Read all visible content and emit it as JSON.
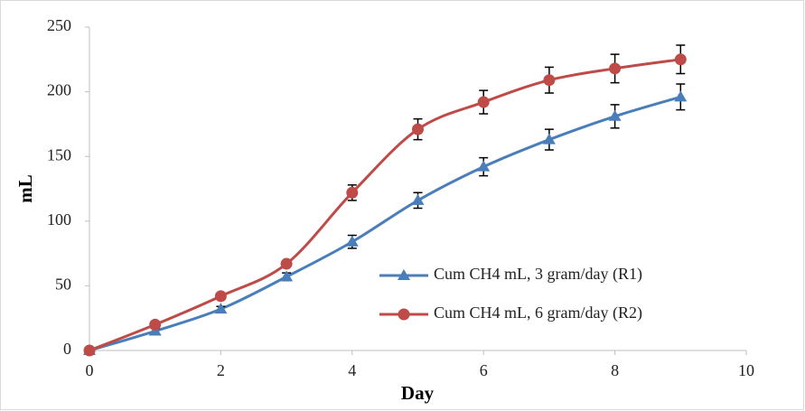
{
  "chart_data": {
    "type": "line",
    "x_label": "Day",
    "y_label": "mL",
    "x": [
      0,
      1,
      2,
      3,
      4,
      5,
      6,
      7,
      8,
      9
    ],
    "series": [
      {
        "name": "Cum CH4 mL, 3 gram/day (R1)",
        "color": "#4a7ebb",
        "marker": "triangle",
        "values": [
          0,
          15,
          32,
          57,
          84,
          116,
          142,
          163,
          181,
          196
        ],
        "errors": [
          1,
          2,
          2,
          3,
          5,
          6,
          7,
          8,
          9,
          10
        ]
      },
      {
        "name": "Cum CH4 mL, 6 gram/day (R2)",
        "color": "#be4b48",
        "marker": "circle",
        "values": [
          0,
          20,
          42,
          67,
          122,
          171,
          192,
          209,
          218,
          225
        ],
        "errors": [
          1,
          2,
          2,
          2,
          6,
          8,
          9,
          10,
          11,
          11
        ]
      }
    ],
    "xlim": [
      0,
      10
    ],
    "xticks": [
      0,
      2,
      4,
      6,
      8,
      10
    ],
    "ylim": [
      0,
      250
    ],
    "yticks": [
      0,
      50,
      100,
      150,
      200,
      250
    ],
    "smooth": true,
    "legend": "lower right"
  }
}
